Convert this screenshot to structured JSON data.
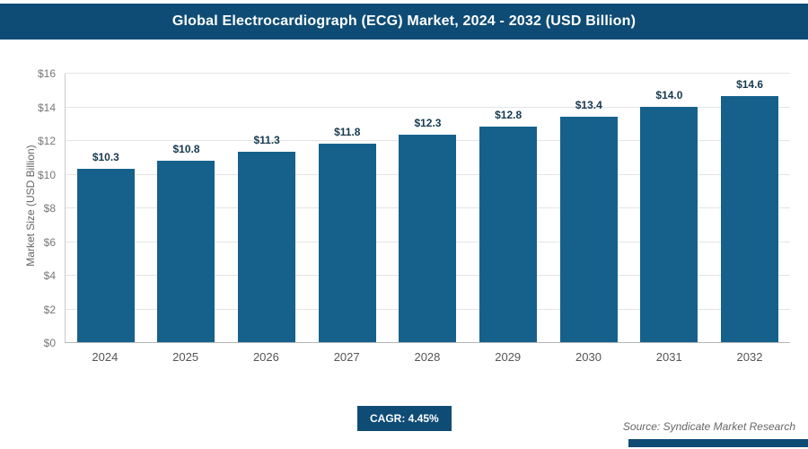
{
  "header": {
    "title": "Global Electrocardiograph (ECG) Market, 2024 - 2032 (USD Billion)"
  },
  "chart_data": {
    "type": "bar",
    "title": "Global Electrocardiograph (ECG) Market, 2024 - 2032 (USD Billion)",
    "categories": [
      "2024",
      "2025",
      "2026",
      "2027",
      "2028",
      "2029",
      "2030",
      "2031",
      "2032"
    ],
    "values": [
      10.3,
      10.8,
      11.3,
      11.8,
      12.3,
      12.8,
      13.4,
      14.0,
      14.6
    ],
    "value_labels": [
      "$10.3",
      "$10.8",
      "$11.3",
      "$11.8",
      "$12.3",
      "$12.8",
      "$13.4",
      "$14.0",
      "$14.6"
    ],
    "xlabel": "",
    "ylabel": "Market Size (USD Billion)",
    "ylim": [
      0,
      16
    ],
    "ytick_step": 2,
    "ytick_labels": [
      "$0",
      "$2",
      "$4",
      "$6",
      "$8",
      "$10",
      "$12",
      "$14",
      "$16"
    ],
    "grid": true,
    "legend_position": "none",
    "bar_color": "#15618c"
  },
  "footer": {
    "cagr_label": "CAGR: 4.45%",
    "source": "Source: Syndicate Market Research"
  },
  "colors": {
    "header_bg": "#0f4c75",
    "bar": "#15618c",
    "accent_bar": "#0f4c75",
    "gridline": "#e4e4e4"
  }
}
